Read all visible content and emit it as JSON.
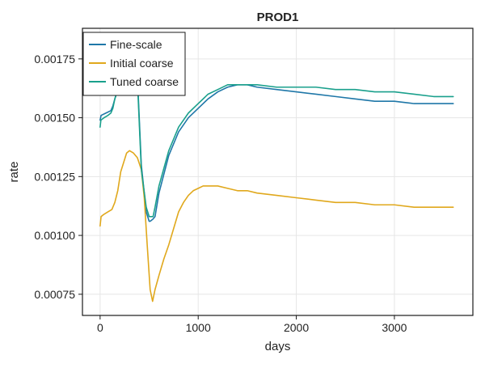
{
  "chart_data": {
    "type": "line",
    "title": "PROD1",
    "xlabel": "days",
    "ylabel": "rate",
    "xlim": [
      -180,
      3800
    ],
    "ylim": [
      0.00066,
      0.00188
    ],
    "x_ticks": [
      0,
      1000,
      2000,
      3000
    ],
    "x_tick_labels": [
      "0",
      "1000",
      "2000",
      "3000"
    ],
    "y_ticks": [
      0.00075,
      0.001,
      0.00125,
      0.0015,
      0.00175
    ],
    "y_tick_labels": [
      "0.00075",
      "0.00100",
      "0.00125",
      "0.00150",
      "0.00175"
    ],
    "grid": true,
    "legend_position": "top-left",
    "series": [
      {
        "name": "Fine-scale",
        "color": "#1f77a8",
        "x": [
          0,
          10,
          60,
          110,
          130,
          150,
          175,
          195,
          210,
          225,
          300,
          380,
          420,
          470,
          500,
          510,
          540,
          560,
          600,
          700,
          800,
          900,
          1000,
          1100,
          1200,
          1300,
          1400,
          1500,
          1600,
          1800,
          2000,
          2200,
          2400,
          2600,
          2800,
          3000,
          3200,
          3400,
          3600
        ],
        "y": [
          0.00149,
          0.00151,
          0.00152,
          0.00153,
          0.00155,
          0.00158,
          0.00161,
          0.00164,
          0.00168,
          0.00172,
          0.0018,
          0.00168,
          0.0013,
          0.0011,
          0.00106,
          0.00106,
          0.00107,
          0.00108,
          0.00118,
          0.00134,
          0.00144,
          0.0015,
          0.00154,
          0.00158,
          0.00161,
          0.00163,
          0.00164,
          0.00164,
          0.00163,
          0.00162,
          0.00161,
          0.0016,
          0.00159,
          0.00158,
          0.00157,
          0.00157,
          0.00156,
          0.00156,
          0.00156
        ]
      },
      {
        "name": "Initial coarse",
        "color": "#e0a81c",
        "x": [
          0,
          10,
          40,
          80,
          120,
          150,
          180,
          210,
          240,
          270,
          300,
          340,
          380,
          420,
          450,
          480,
          510,
          535,
          560,
          600,
          650,
          700,
          750,
          800,
          850,
          900,
          950,
          1000,
          1050,
          1100,
          1150,
          1200,
          1300,
          1400,
          1500,
          1600,
          1800,
          2000,
          2200,
          2400,
          2600,
          2800,
          3000,
          3200,
          3400,
          3600
        ],
        "y": [
          0.00104,
          0.00108,
          0.00109,
          0.0011,
          0.00111,
          0.00114,
          0.00119,
          0.00127,
          0.00131,
          0.00135,
          0.00136,
          0.00135,
          0.00133,
          0.00128,
          0.00116,
          0.00096,
          0.00077,
          0.00072,
          0.00077,
          0.00083,
          0.0009,
          0.00096,
          0.00103,
          0.0011,
          0.00114,
          0.00117,
          0.00119,
          0.0012,
          0.00121,
          0.00121,
          0.00121,
          0.00121,
          0.0012,
          0.00119,
          0.00119,
          0.00118,
          0.00117,
          0.00116,
          0.00115,
          0.00114,
          0.00114,
          0.00113,
          0.00113,
          0.00112,
          0.00112,
          0.00112
        ]
      },
      {
        "name": "Tuned coarse",
        "color": "#1aa08c",
        "x": [
          0,
          8,
          40,
          80,
          110,
          130,
          150,
          180,
          200,
          230,
          300,
          380,
          420,
          470,
          500,
          510,
          540,
          560,
          600,
          700,
          800,
          900,
          1000,
          1100,
          1200,
          1300,
          1400,
          1500,
          1600,
          1800,
          2000,
          2200,
          2400,
          2600,
          2800,
          3000,
          3200,
          3400,
          3600
        ],
        "y": [
          0.00146,
          0.00149,
          0.0015,
          0.00151,
          0.00152,
          0.00154,
          0.00158,
          0.00162,
          0.00166,
          0.00171,
          0.00178,
          0.00166,
          0.00128,
          0.00112,
          0.00108,
          0.00108,
          0.00108,
          0.00112,
          0.00121,
          0.00136,
          0.00146,
          0.00152,
          0.00156,
          0.0016,
          0.00162,
          0.00164,
          0.00164,
          0.00164,
          0.00164,
          0.00163,
          0.00163,
          0.00163,
          0.00162,
          0.00162,
          0.00161,
          0.00161,
          0.0016,
          0.00159,
          0.00159
        ]
      }
    ]
  }
}
